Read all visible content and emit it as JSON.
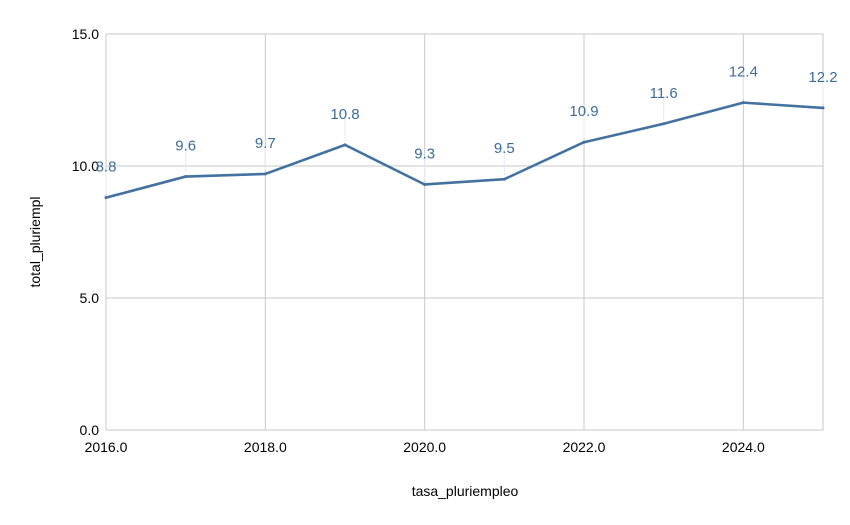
{
  "chart_data": {
    "type": "line",
    "title": "",
    "xlabel": "tasa_pluriempleo",
    "ylabel": "total_pluriempl",
    "x": [
      2016,
      2017,
      2018,
      2019,
      2020,
      2021,
      2022,
      2023,
      2024,
      2025
    ],
    "series": [
      {
        "values": [
          8.8,
          9.6,
          9.7,
          10.8,
          9.3,
          9.5,
          10.9,
          11.6,
          12.4,
          12.2
        ],
        "labels": [
          "8.8",
          "9.6",
          "9.7",
          "10.8",
          "9.3",
          "9.5",
          "10.9",
          "11.6",
          "12.4",
          "12.2"
        ],
        "color": "#4472a0"
      }
    ],
    "xlim": [
      2016,
      2025
    ],
    "ylim": [
      0,
      15
    ],
    "xticks": [
      2016,
      2018,
      2020,
      2022,
      2024
    ],
    "xtick_labels": [
      "2016.0",
      "2018.0",
      "2020.0",
      "2022.0",
      "2024.0"
    ],
    "yticks": [
      0,
      5,
      10,
      15
    ],
    "ytick_labels": [
      "0.0",
      "5.0",
      "10.0",
      "15.0"
    ],
    "grid": true,
    "label_color": "#3d6d99"
  }
}
